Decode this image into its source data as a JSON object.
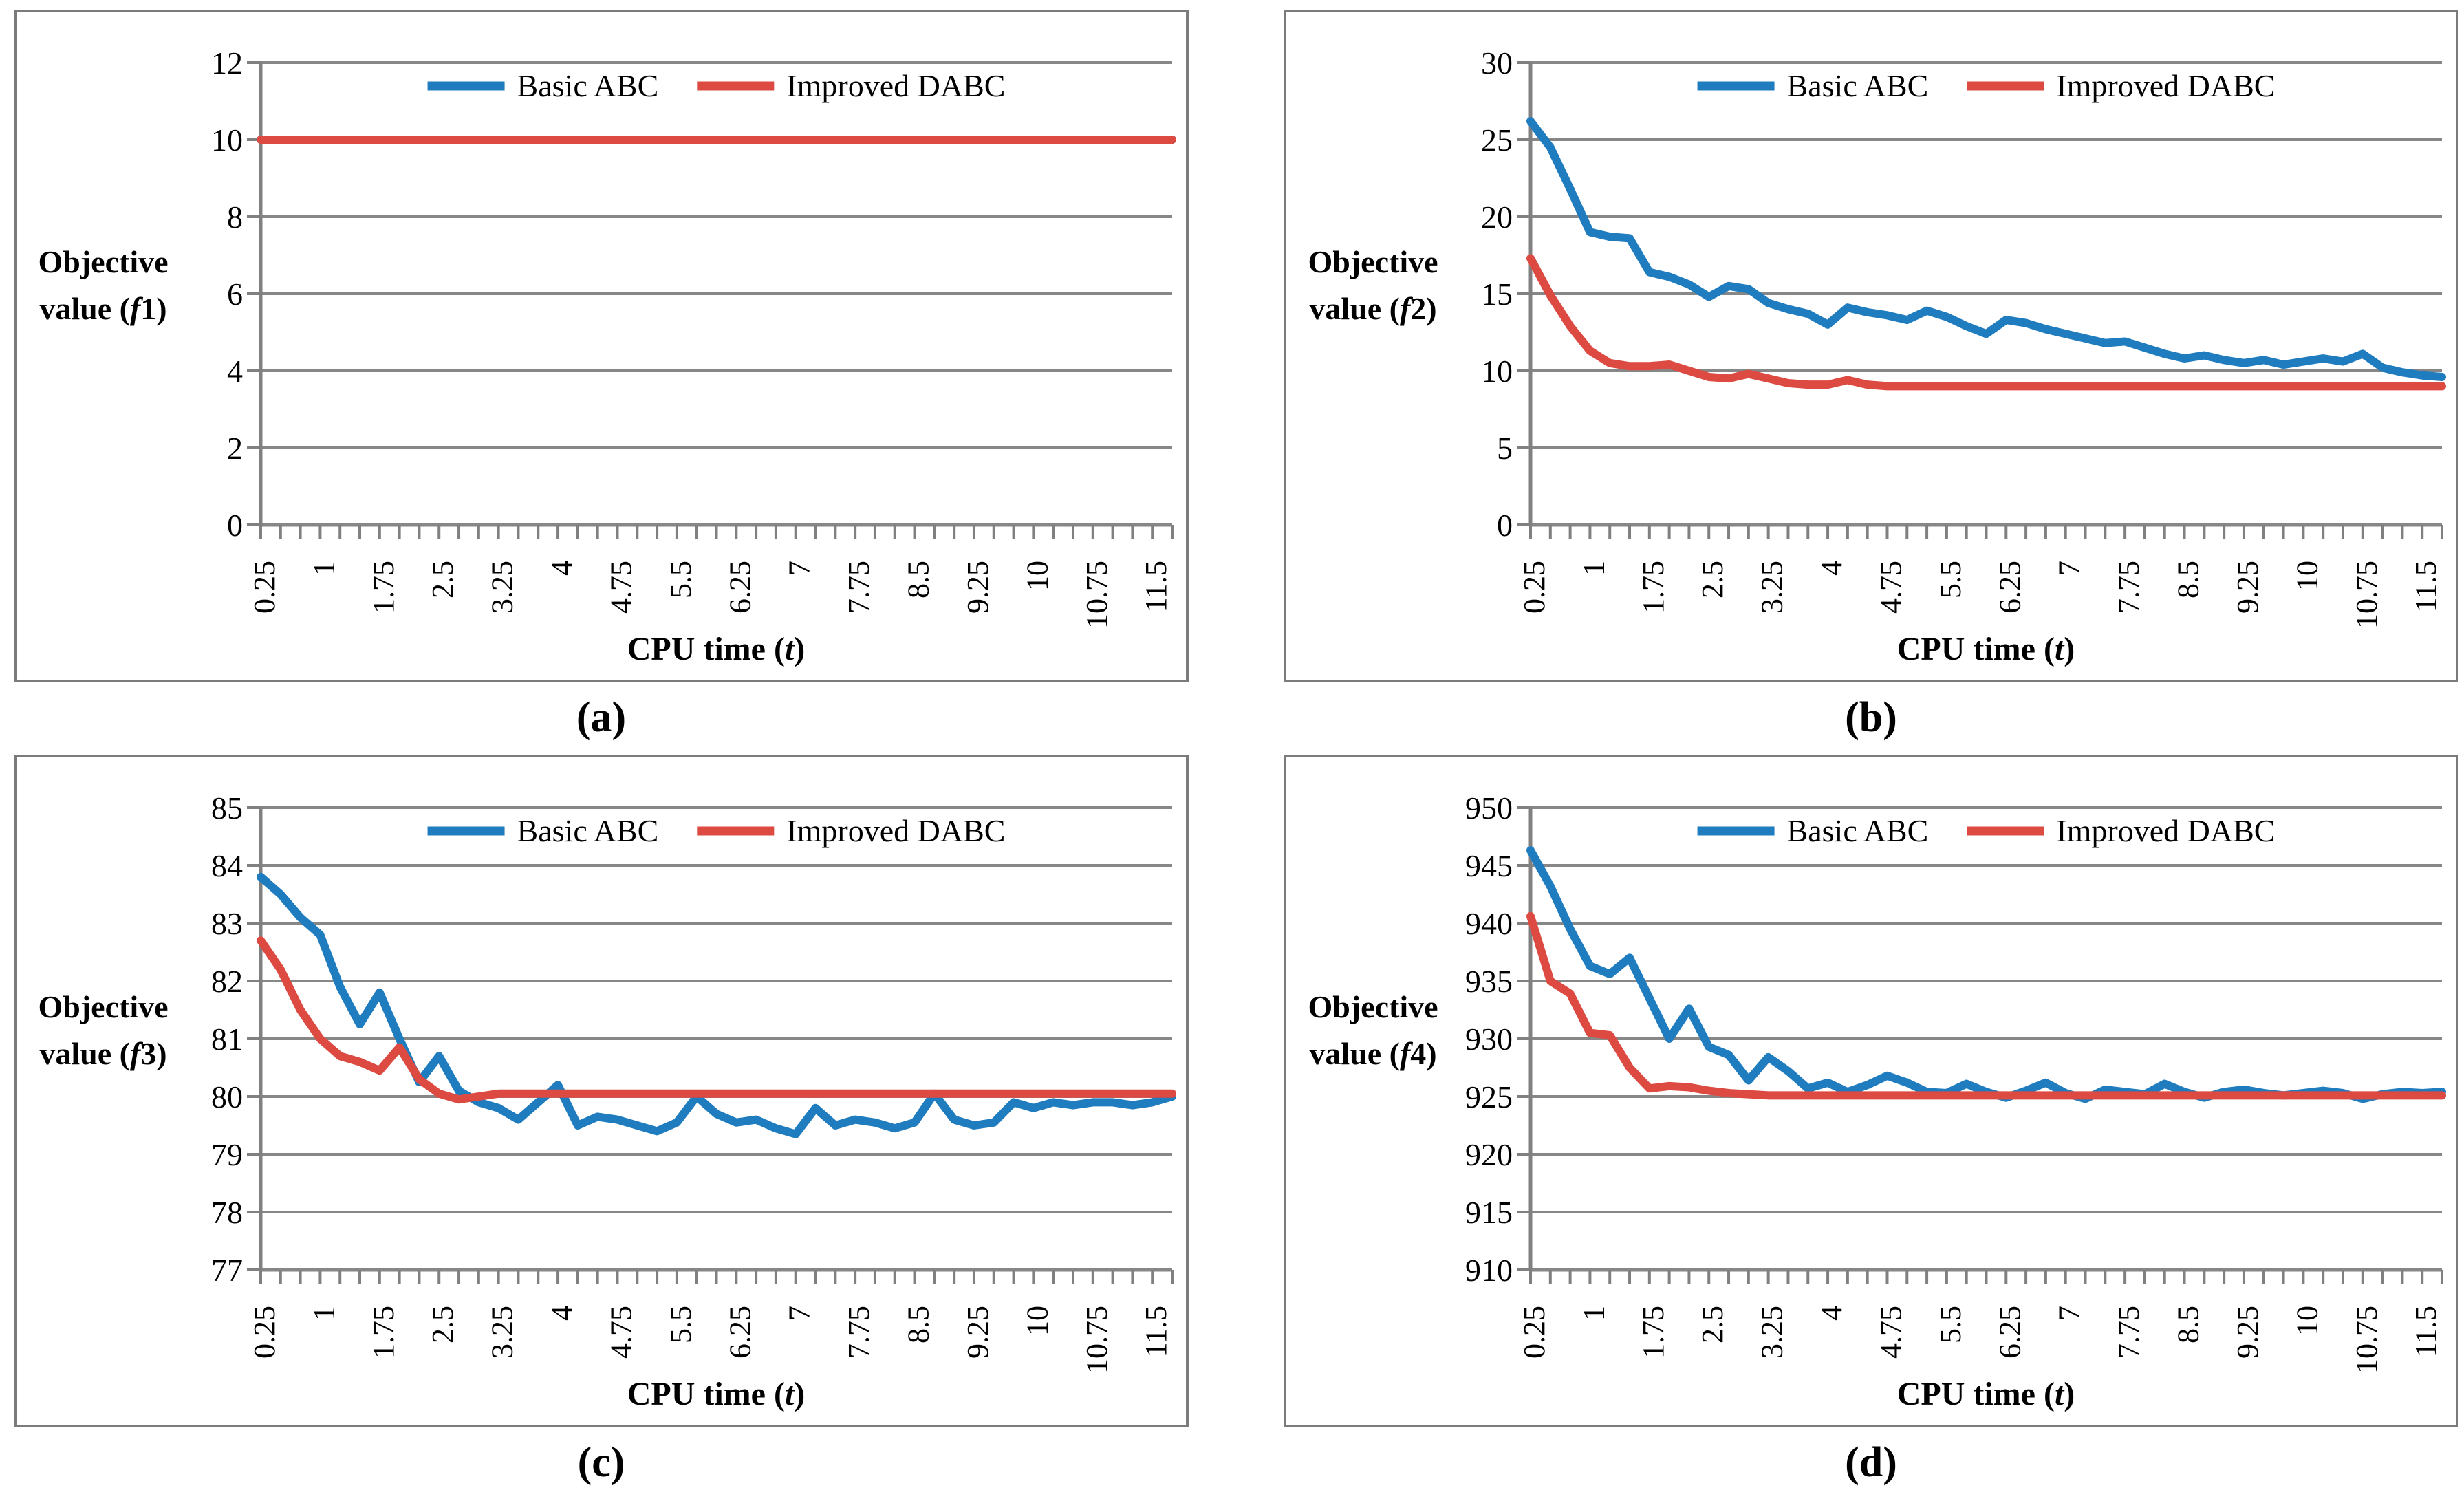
{
  "legend": {
    "basic": "Basic ABC",
    "improved": "Improved DABC"
  },
  "colors": {
    "basic": "#1F7CBF",
    "improved": "#DC4A42",
    "grid": "#878787",
    "axis": "#808080",
    "border": "#7b7b7b",
    "text": "#000000"
  },
  "x_axis": {
    "title_pre": "CPU time (",
    "title_var": "t",
    "title_post": ")",
    "start": 0.25,
    "step": 0.25,
    "count": 47,
    "tick_labels": [
      "0.25",
      "1",
      "1.75",
      "2.5",
      "3.25",
      "4",
      "4.75",
      "5.5",
      "6.25",
      "7",
      "7.75",
      "8.5",
      "9.25",
      "10",
      "10.75",
      "11.5"
    ],
    "label_every": 3
  },
  "chart_data": [
    {
      "type": "line",
      "caption": "(a)",
      "ylabel": {
        "line1": "Objective",
        "pre": "value (",
        "fvar": "f",
        "fnum": "1",
        "post": ")"
      },
      "ymin": 0,
      "ymax": 12,
      "ystep": 2,
      "grid": true,
      "legend_position": "top-center",
      "x": "CPU time (t), 0.25 to 11.75 step 0.25",
      "series": [
        {
          "name": "Basic ABC",
          "color_key": "basic",
          "values": [
            10,
            10,
            10,
            10,
            10,
            10,
            10,
            10,
            10,
            10,
            10,
            10,
            10,
            10,
            10,
            10,
            10,
            10,
            10,
            10,
            10,
            10,
            10,
            10,
            10,
            10,
            10,
            10,
            10,
            10,
            10,
            10,
            10,
            10,
            10,
            10,
            10,
            10,
            10,
            10,
            10,
            10,
            10,
            10,
            10,
            10,
            10
          ]
        },
        {
          "name": "Improved DABC",
          "color_key": "improved",
          "values": [
            10,
            10,
            10,
            10,
            10,
            10,
            10,
            10,
            10,
            10,
            10,
            10,
            10,
            10,
            10,
            10,
            10,
            10,
            10,
            10,
            10,
            10,
            10,
            10,
            10,
            10,
            10,
            10,
            10,
            10,
            10,
            10,
            10,
            10,
            10,
            10,
            10,
            10,
            10,
            10,
            10,
            10,
            10,
            10,
            10,
            10,
            10
          ]
        }
      ]
    },
    {
      "type": "line",
      "caption": "(b)",
      "ylabel": {
        "line1": "Objective",
        "pre": "value (",
        "fvar": "f",
        "fnum": "2",
        "post": ")"
      },
      "ymin": 0,
      "ymax": 30,
      "ystep": 5,
      "grid": true,
      "legend_position": "top-center",
      "x": "CPU time (t), 0.25 to 11.75 step 0.25",
      "series": [
        {
          "name": "Basic ABC",
          "color_key": "basic",
          "values": [
            26.2,
            24.5,
            21.8,
            19.0,
            18.7,
            18.6,
            16.4,
            16.1,
            15.6,
            14.8,
            15.5,
            15.3,
            14.4,
            14.0,
            13.7,
            13.0,
            14.1,
            13.8,
            13.6,
            13.3,
            13.9,
            13.5,
            12.9,
            12.4,
            13.3,
            13.1,
            12.7,
            12.4,
            12.1,
            11.8,
            11.9,
            11.5,
            11.1,
            10.8,
            11.0,
            10.7,
            10.5,
            10.7,
            10.4,
            10.6,
            10.8,
            10.6,
            11.1,
            10.2,
            9.9,
            9.7,
            9.6
          ]
        },
        {
          "name": "Improved DABC",
          "color_key": "improved",
          "values": [
            17.3,
            14.9,
            12.9,
            11.3,
            10.5,
            10.3,
            10.3,
            10.4,
            10.0,
            9.6,
            9.5,
            9.8,
            9.5,
            9.2,
            9.1,
            9.1,
            9.4,
            9.1,
            9.0,
            9.0,
            9.0,
            9.0,
            9.0,
            9.0,
            9.0,
            9.0,
            9.0,
            9.0,
            9.0,
            9.0,
            9.0,
            9.0,
            9.0,
            9.0,
            9.0,
            9.0,
            9.0,
            9.0,
            9.0,
            9.0,
            9.0,
            9.0,
            9.0,
            9.0,
            9.0,
            9.0,
            9.0
          ]
        }
      ]
    },
    {
      "type": "line",
      "caption": "(c)",
      "ylabel": {
        "line1": "Objective",
        "pre": "value (",
        "fvar": "f",
        "fnum": "3",
        "post": ")"
      },
      "ymin": 77,
      "ymax": 85,
      "ystep": 1,
      "grid": true,
      "legend_position": "top-center",
      "x": "CPU time (t), 0.25 to 11.75 step 0.25",
      "series": [
        {
          "name": "Basic ABC",
          "color_key": "basic",
          "values": [
            83.8,
            83.5,
            83.1,
            82.8,
            81.9,
            81.25,
            81.8,
            81.0,
            80.25,
            80.7,
            80.1,
            79.9,
            79.8,
            79.6,
            79.9,
            80.2,
            79.5,
            79.65,
            79.6,
            79.5,
            79.4,
            79.55,
            80.0,
            79.7,
            79.55,
            79.6,
            79.45,
            79.35,
            79.8,
            79.5,
            79.6,
            79.55,
            79.45,
            79.55,
            80.05,
            79.6,
            79.5,
            79.55,
            79.9,
            79.8,
            79.9,
            79.85,
            79.9,
            79.9,
            79.85,
            79.9,
            80.0
          ]
        },
        {
          "name": "Improved DABC",
          "color_key": "improved",
          "values": [
            82.7,
            82.2,
            81.5,
            81.0,
            80.7,
            80.6,
            80.45,
            80.85,
            80.3,
            80.05,
            79.95,
            80.0,
            80.05,
            80.05,
            80.05,
            80.05,
            80.05,
            80.05,
            80.05,
            80.05,
            80.05,
            80.05,
            80.05,
            80.05,
            80.05,
            80.05,
            80.05,
            80.05,
            80.05,
            80.05,
            80.05,
            80.05,
            80.05,
            80.05,
            80.05,
            80.05,
            80.05,
            80.05,
            80.05,
            80.05,
            80.05,
            80.05,
            80.05,
            80.05,
            80.05,
            80.05,
            80.05
          ]
        }
      ]
    },
    {
      "type": "line",
      "caption": "(d)",
      "ylabel": {
        "line1": "Objective",
        "pre": "value (",
        "fvar": "f",
        "fnum": "4",
        "post": ")"
      },
      "ymin": 910,
      "ymax": 950,
      "ystep": 5,
      "grid": true,
      "legend_position": "top-center",
      "x": "CPU time (t), 0.25 to 11.75 step 0.25",
      "series": [
        {
          "name": "Basic ABC",
          "color_key": "basic",
          "values": [
            946.3,
            943.2,
            939.5,
            936.3,
            935.6,
            937.0,
            933.5,
            930.0,
            932.6,
            929.3,
            928.6,
            926.4,
            928.4,
            927.2,
            925.7,
            926.2,
            925.4,
            926.0,
            926.8,
            926.2,
            925.4,
            925.3,
            926.1,
            925.4,
            924.9,
            925.5,
            926.2,
            925.3,
            924.8,
            925.6,
            925.4,
            925.2,
            926.1,
            925.4,
            924.9,
            925.4,
            925.6,
            925.3,
            925.1,
            925.3,
            925.5,
            925.3,
            924.8,
            925.2,
            925.4,
            925.3,
            925.4
          ]
        },
        {
          "name": "Improved DABC",
          "color_key": "improved",
          "values": [
            940.6,
            935.0,
            933.9,
            930.5,
            930.3,
            927.5,
            925.7,
            925.9,
            925.8,
            925.5,
            925.3,
            925.2,
            925.1,
            925.1,
            925.1,
            925.1,
            925.1,
            925.1,
            925.1,
            925.1,
            925.1,
            925.1,
            925.1,
            925.1,
            925.1,
            925.1,
            925.1,
            925.1,
            925.1,
            925.1,
            925.1,
            925.1,
            925.1,
            925.1,
            925.1,
            925.1,
            925.1,
            925.1,
            925.1,
            925.1,
            925.1,
            925.1,
            925.1,
            925.1,
            925.1,
            925.1,
            925.1
          ]
        }
      ]
    }
  ]
}
